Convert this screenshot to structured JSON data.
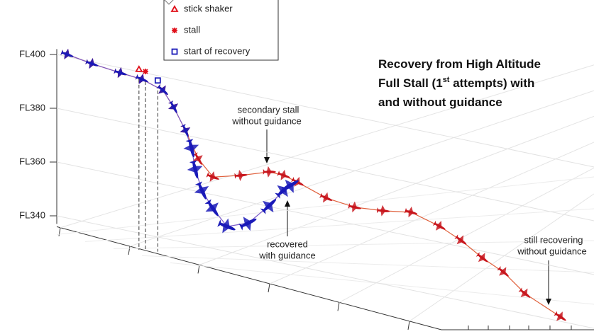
{
  "chart_data": {
    "type": "line",
    "title": [
      [
        "Recovery from High Altitude"
      ],
      [
        "Full Stall (1",
        "st",
        " attempts) with"
      ],
      [
        "and without guidance"
      ]
    ],
    "xlim": [
      0,
      100
    ],
    "ylim": [
      337,
      402
    ],
    "yticks": [
      {
        "value": 400,
        "label": "FL400"
      },
      {
        "value": 380,
        "label": "FL380"
      },
      {
        "value": 360,
        "label": "FL360"
      },
      {
        "value": 340,
        "label": "FL340"
      }
    ],
    "grid": true,
    "series": [
      {
        "color": "#c8161d",
        "line_color": "#e0603c",
        "x": [
          2,
          6.6,
          11.9,
          15.9,
          19.8,
          21.8,
          24,
          26.4,
          29.1,
          34.3,
          39.6,
          42.3,
          44.9,
          50.2,
          55.5,
          60.8,
          66,
          71.3,
          75.3,
          79.3,
          83.2,
          87.2,
          93.8
        ],
        "values": [
          400.8,
          399.3,
          398.1,
          397.4,
          394.9,
          389.4,
          381.6,
          372.1,
          366.6,
          369.4,
          372.9,
          372.7,
          371.2,
          367.6,
          366.4,
          367.3,
          368.9,
          365.9,
          362.3,
          357.4,
          353.8,
          347.5,
          341.6
        ]
      },
      {
        "color": "#1a1ab8",
        "line_color": "#7a5ac8",
        "x": [
          2,
          6.6,
          11.9,
          15.9,
          19.8,
          21.8,
          24,
          25.1,
          25.8,
          27.1,
          29.1,
          31.7,
          35.7,
          39.6,
          42.3,
          43.6
        ],
        "values": [
          400.8,
          399.3,
          398.1,
          397.4,
          394.9,
          389.4,
          381.6,
          375.5,
          367.9,
          360.5,
          354.8,
          349.3,
          352.3,
          360.5,
          367.4,
          369.6
        ]
      }
    ],
    "events": [
      {
        "name": "stick shaker",
        "marker": "triangle",
        "color": "#e0101a",
        "x": 15.3,
        "value": 400.9
      },
      {
        "name": "stall",
        "marker": "asterisk",
        "color": "#e0101a",
        "x": 16.5,
        "value": 400.6
      },
      {
        "name": "start of recovery",
        "marker": "square",
        "color": "#1a1ab8",
        "x": 18.8,
        "value": 398.2
      }
    ],
    "annotations": [
      [
        "secondary stall",
        "without guidance"
      ],
      [
        "recovered",
        "with guidance"
      ],
      [
        "still recovering",
        "without guidance"
      ]
    ]
  }
}
